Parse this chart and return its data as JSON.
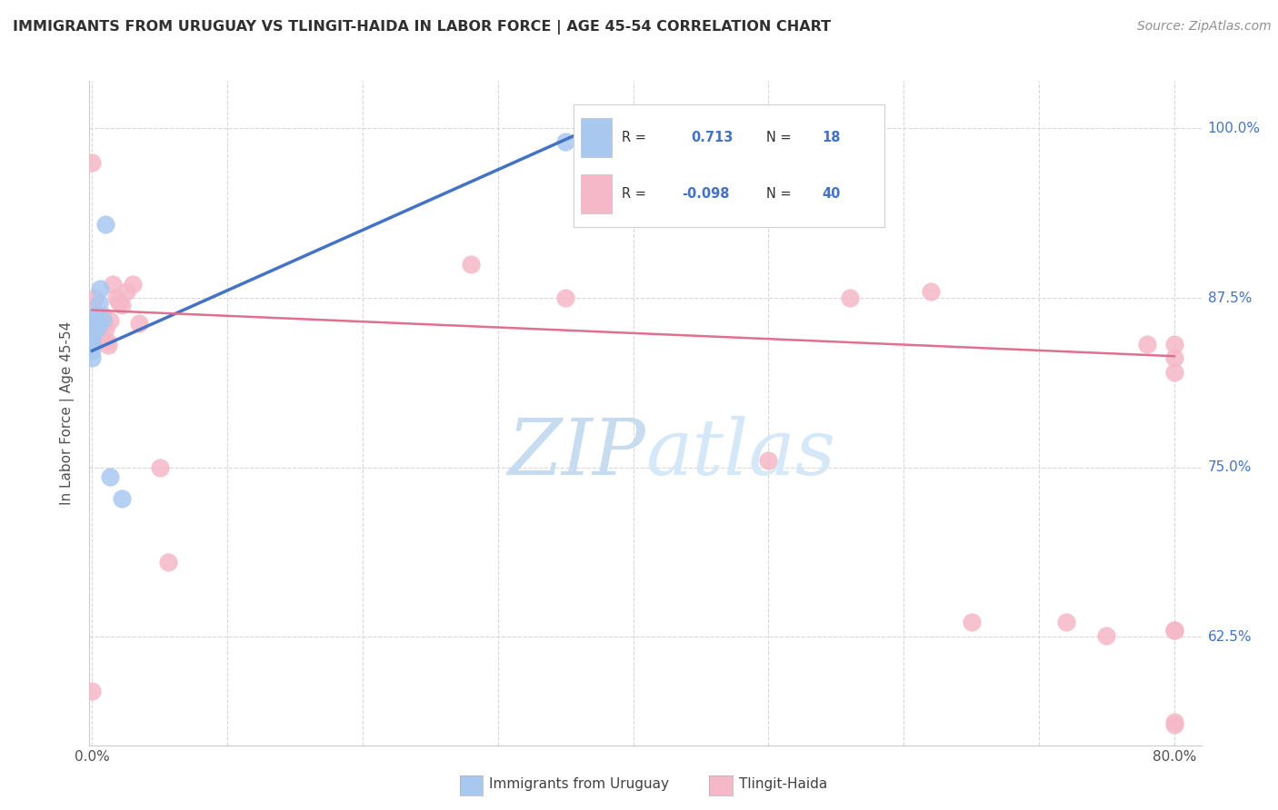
{
  "title": "IMMIGRANTS FROM URUGUAY VS TLINGIT-HAIDA IN LABOR FORCE | AGE 45-54 CORRELATION CHART",
  "source": "Source: ZipAtlas.com",
  "ylabel": "In Labor Force | Age 45-54",
  "x_min": -0.002,
  "x_max": 0.82,
  "y_min": 0.545,
  "y_max": 1.035,
  "blue_R": 0.713,
  "blue_N": 18,
  "pink_R": -0.098,
  "pink_N": 40,
  "blue_points_x": [
    0.0,
    0.0,
    0.0,
    0.0,
    0.0,
    0.0,
    0.0,
    0.001,
    0.002,
    0.003,
    0.004,
    0.005,
    0.006,
    0.008,
    0.01,
    0.013,
    0.022,
    0.35
  ],
  "blue_points_y": [
    0.858,
    0.853,
    0.848,
    0.844,
    0.84,
    0.836,
    0.831,
    0.856,
    0.862,
    0.857,
    0.853,
    0.871,
    0.882,
    0.859,
    0.929,
    0.743,
    0.727,
    0.99
  ],
  "pink_points_x": [
    0.0,
    0.0,
    0.001,
    0.002,
    0.003,
    0.004,
    0.005,
    0.006,
    0.007,
    0.008,
    0.009,
    0.01,
    0.011,
    0.012,
    0.013,
    0.015,
    0.018,
    0.02,
    0.022,
    0.025,
    0.03,
    0.035,
    0.05,
    0.056,
    0.28,
    0.35,
    0.5,
    0.56,
    0.62,
    0.65,
    0.72,
    0.75,
    0.78,
    0.8,
    0.8,
    0.8,
    0.8,
    0.8,
    0.8,
    0.8
  ],
  "pink_points_y": [
    0.975,
    0.585,
    0.865,
    0.875,
    0.858,
    0.855,
    0.85,
    0.845,
    0.855,
    0.862,
    0.856,
    0.852,
    0.843,
    0.84,
    0.858,
    0.885,
    0.875,
    0.872,
    0.87,
    0.88,
    0.885,
    0.856,
    0.75,
    0.68,
    0.9,
    0.875,
    0.755,
    0.875,
    0.88,
    0.636,
    0.636,
    0.626,
    0.841,
    0.841,
    0.831,
    0.82,
    0.63,
    0.63,
    0.562,
    0.56
  ],
  "blue_line_x": [
    0.0,
    0.375
  ],
  "blue_line_y": [
    0.836,
    1.003
  ],
  "pink_line_x": [
    0.0,
    0.8
  ],
  "pink_line_y": [
    0.866,
    0.832
  ],
  "background_color": "#ffffff",
  "blue_color": "#a8c8f0",
  "pink_color": "#f5b8c8",
  "blue_line_color": "#4472c4",
  "pink_line_color": "#e07090",
  "grid_color": "#d8d8d8",
  "title_color": "#303030",
  "source_color": "#909090",
  "right_axis_color": "#4472c4",
  "watermark_color": "#dce8f5",
  "legend_text_dark": "#303030",
  "legend_value_color": "#4472c4"
}
